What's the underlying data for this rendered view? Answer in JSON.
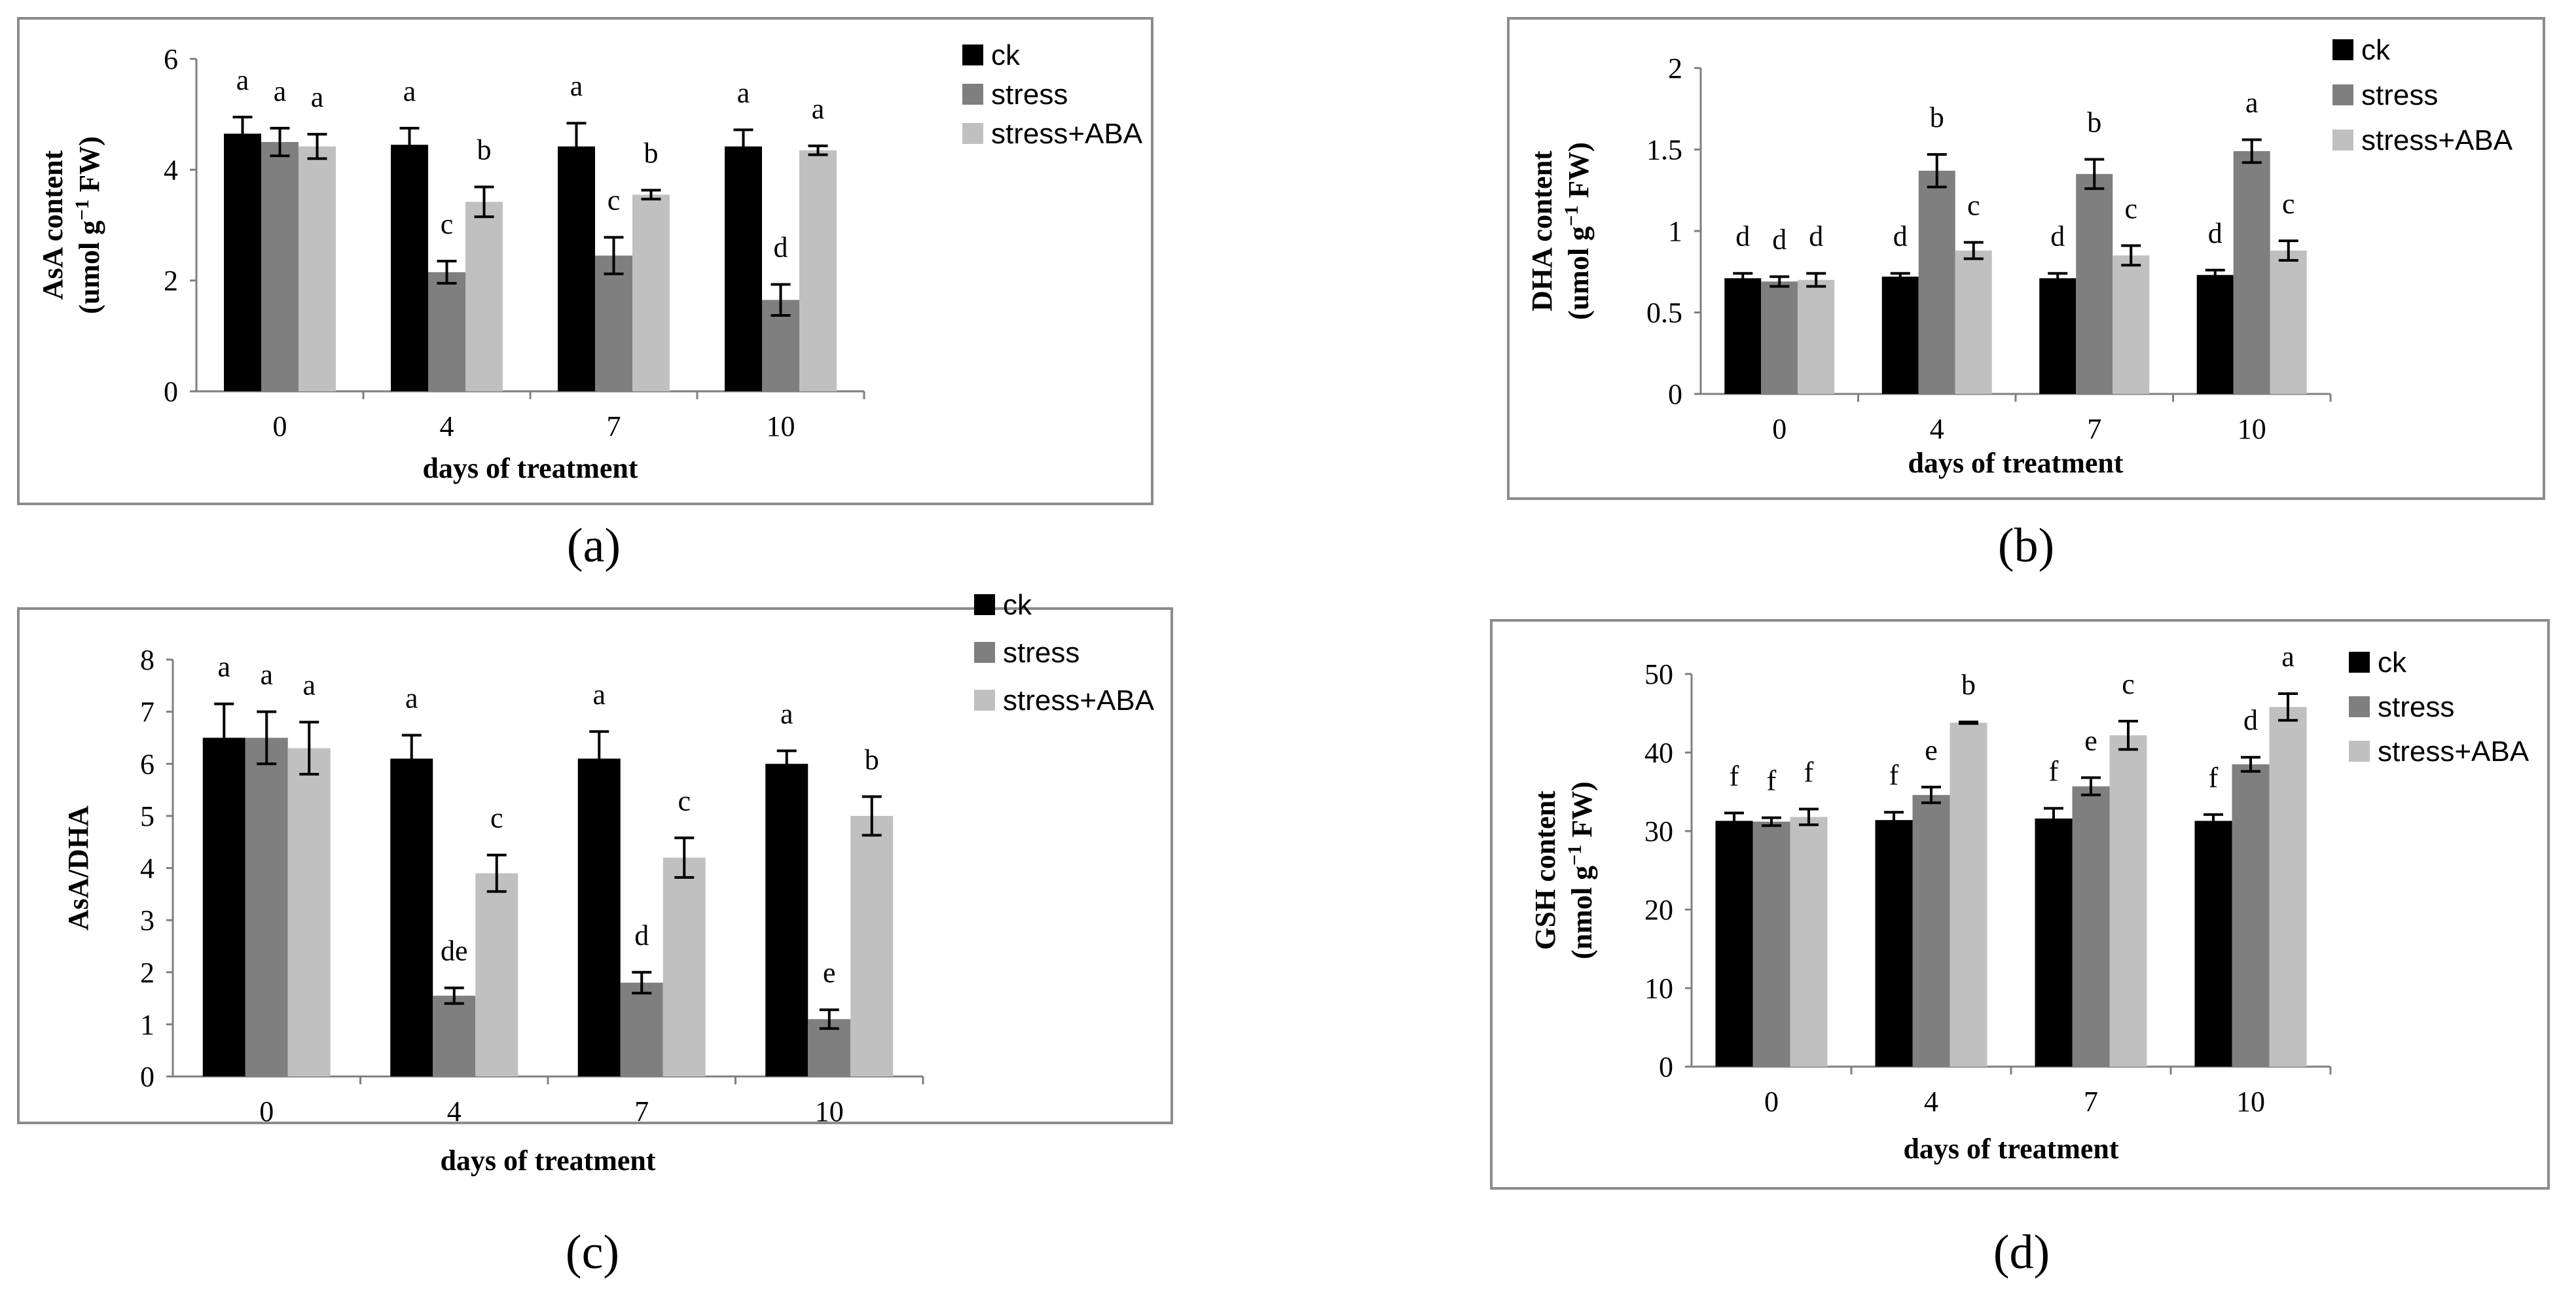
{
  "colors": {
    "ck": "#000000",
    "stress": "#7f7f7f",
    "stress_aba": "#c0c0c0",
    "frame": "#8c8c8c",
    "axis": "#7f7f7f",
    "text": "#000000"
  },
  "chart_data": [
    {
      "type": "bar",
      "panel_label": "(a)",
      "panel_letter": "a",
      "ylabel_main": "AsA content",
      "ylabel_unit": "(umol g",
      "ylabel_sup": "−1",
      "ylabel_end": " FW)",
      "xlabel": "days of treatment",
      "ylim": [
        0,
        6
      ],
      "yticks": [
        "0",
        "2",
        "4",
        "6"
      ],
      "categories": [
        "0",
        "4",
        "7",
        "10"
      ],
      "series": [
        {
          "name": "ck",
          "values": [
            4.65,
            4.45,
            4.42,
            4.42
          ],
          "errors": [
            0.3,
            0.3,
            0.42,
            0.3
          ],
          "letters": [
            "a",
            "a",
            "a",
            "a"
          ]
        },
        {
          "name": "stress",
          "values": [
            4.5,
            2.15,
            2.45,
            1.65
          ],
          "errors": [
            0.25,
            0.2,
            0.33,
            0.28
          ],
          "letters": [
            "a",
            "c",
            "c",
            "d"
          ]
        },
        {
          "name": "stress+ABA",
          "values": [
            4.42,
            3.42,
            3.55,
            4.35
          ],
          "errors": [
            0.22,
            0.27,
            0.08,
            0.08
          ],
          "letters": [
            "a",
            "b",
            "b",
            "a"
          ]
        }
      ]
    },
    {
      "type": "bar",
      "panel_label": "(b)",
      "panel_letter": "b",
      "ylabel_main": "DHA content",
      "ylabel_unit": "(umol g",
      "ylabel_sup": "−1",
      "ylabel_end": " FW)",
      "xlabel": "days of treatment",
      "ylim": [
        0,
        2
      ],
      "yticks": [
        "0",
        "0.5",
        "1",
        "1.5",
        "2"
      ],
      "categories": [
        "0",
        "4",
        "7",
        "10"
      ],
      "series": [
        {
          "name": "ck",
          "values": [
            0.71,
            0.72,
            0.71,
            0.73
          ],
          "errors": [
            0.03,
            0.02,
            0.03,
            0.03
          ],
          "letters": [
            "d",
            "d",
            "d",
            "d"
          ]
        },
        {
          "name": "stress",
          "values": [
            0.69,
            1.37,
            1.35,
            1.49
          ],
          "errors": [
            0.03,
            0.1,
            0.09,
            0.07
          ],
          "letters": [
            "d",
            "b",
            "b",
            "a"
          ]
        },
        {
          "name": "stress+ABA",
          "values": [
            0.7,
            0.88,
            0.85,
            0.88
          ],
          "errors": [
            0.04,
            0.05,
            0.06,
            0.06
          ],
          "letters": [
            "d",
            "c",
            "c",
            "c"
          ]
        }
      ]
    },
    {
      "type": "bar",
      "panel_label": "(c)",
      "panel_letter": "c",
      "ylabel_main": "AsA/DHA",
      "xlabel": "days of treatment",
      "ylim": [
        0,
        8
      ],
      "yticks": [
        "0",
        "1",
        "2",
        "3",
        "4",
        "5",
        "6",
        "7",
        "8"
      ],
      "categories": [
        "0",
        "4",
        "7",
        "10"
      ],
      "series": [
        {
          "name": "ck",
          "values": [
            6.5,
            6.1,
            6.1,
            6.0
          ],
          "errors": [
            0.65,
            0.45,
            0.52,
            0.25
          ],
          "letters": [
            "a",
            "a",
            "a",
            "a"
          ]
        },
        {
          "name": "stress",
          "values": [
            6.5,
            1.55,
            1.8,
            1.1
          ],
          "errors": [
            0.5,
            0.15,
            0.2,
            0.18
          ],
          "letters": [
            "a",
            "de",
            "d",
            "e"
          ]
        },
        {
          "name": "stress+ABA",
          "values": [
            6.3,
            3.9,
            4.2,
            5.0
          ],
          "errors": [
            0.5,
            0.35,
            0.38,
            0.37
          ],
          "letters": [
            "a",
            "c",
            "c",
            "b"
          ]
        }
      ]
    },
    {
      "type": "bar",
      "panel_label": "(d)",
      "panel_letter": "d",
      "ylabel_main": "GSH content",
      "ylabel_unit": "(nmol g",
      "ylabel_sup": "−1",
      "ylabel_end": " FW)",
      "xlabel": "days of treatment",
      "ylim": [
        0,
        50
      ],
      "yticks": [
        "0",
        "10",
        "20",
        "30",
        "40",
        "50"
      ],
      "categories": [
        "0",
        "4",
        "7",
        "10"
      ],
      "series": [
        {
          "name": "ck",
          "values": [
            31.3,
            31.4,
            31.6,
            31.3
          ],
          "errors": [
            1.0,
            1.0,
            1.3,
            0.8
          ],
          "letters": [
            "f",
            "f",
            "f",
            "f"
          ]
        },
        {
          "name": "stress",
          "values": [
            31.2,
            34.6,
            35.7,
            38.5
          ],
          "errors": [
            0.5,
            1.0,
            1.1,
            0.9
          ],
          "letters": [
            "f",
            "e",
            "e",
            "d"
          ]
        },
        {
          "name": "stress+ABA",
          "values": [
            31.8,
            43.8,
            42.2,
            45.8
          ],
          "errors": [
            1.0,
            0.1,
            1.8,
            1.7
          ],
          "letters": [
            "f",
            "b",
            "c",
            "a"
          ]
        }
      ]
    }
  ]
}
